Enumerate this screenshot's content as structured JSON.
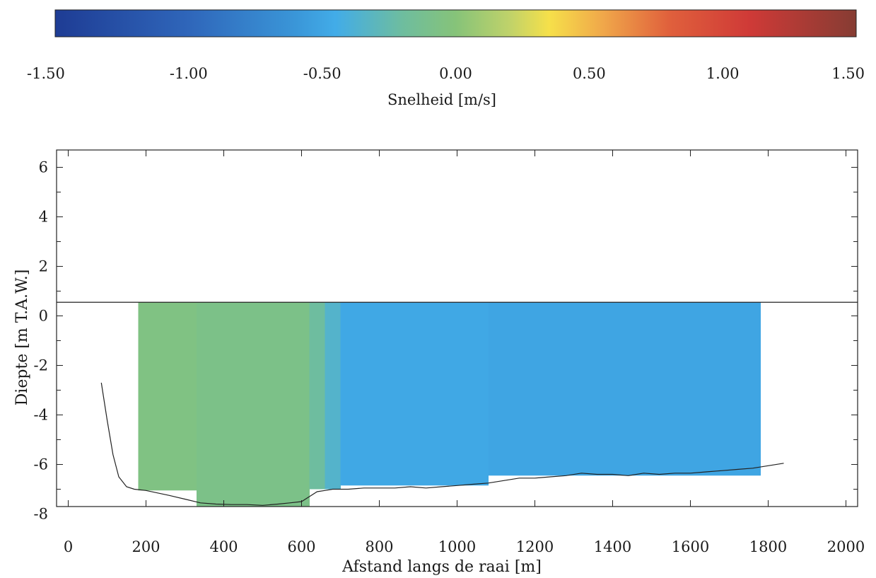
{
  "chart_data": {
    "type": "heatmap",
    "colorbar": {
      "label": "Snelheid [m/s]",
      "range": [
        -1.5,
        1.5
      ],
      "tick_values": [
        -1.5,
        -1.0,
        -0.5,
        0.0,
        0.5,
        1.0,
        1.5
      ],
      "tick_labels": [
        "-1.50",
        "-1.00",
        "-0.50",
        "0.00",
        "0.50",
        "1.00",
        "1.50"
      ],
      "colormap": [
        {
          "v": -1.5,
          "c": "#1e3c94"
        },
        {
          "v": -1.0,
          "c": "#2f66ba"
        },
        {
          "v": -0.6,
          "c": "#3a96d8"
        },
        {
          "v": -0.45,
          "c": "#42ace8"
        },
        {
          "v": -0.2,
          "c": "#6ebd9f"
        },
        {
          "v": 0.0,
          "c": "#86c379"
        },
        {
          "v": 0.2,
          "c": "#bfd26a"
        },
        {
          "v": 0.35,
          "c": "#f6e04a"
        },
        {
          "v": 0.55,
          "c": "#f0a84a"
        },
        {
          "v": 0.8,
          "c": "#e0603c"
        },
        {
          "v": 1.1,
          "c": "#cf3a37"
        },
        {
          "v": 1.5,
          "c": "#863c33"
        }
      ]
    },
    "xlabel": "Afstand langs de raai [m]",
    "ylabel": "Diepte [m T.A.W.]",
    "xlim": [
      -30,
      2030
    ],
    "ylim": [
      -7.7,
      6.7
    ],
    "x_ticks": [
      0,
      200,
      400,
      600,
      800,
      1000,
      1200,
      1400,
      1600,
      1800,
      2000
    ],
    "x_tick_labels": [
      "0",
      "200",
      "400",
      "600",
      "800",
      "1000",
      "1200",
      "1400",
      "1600",
      "1800",
      "2000"
    ],
    "y_ticks": [
      -8,
      -6,
      -4,
      -2,
      0,
      2,
      4,
      6
    ],
    "y_tick_labels": [
      "-8",
      "-6",
      "-4",
      "-2",
      "0",
      "2",
      "4",
      "6"
    ],
    "water_level": 0.55,
    "velocity_regions": [
      {
        "x": [
          180,
          330
        ],
        "y": [
          -7.05,
          0.55
        ],
        "value": -0.05
      },
      {
        "x": [
          330,
          620
        ],
        "y": [
          -7.7,
          0.55
        ],
        "value": -0.08
      },
      {
        "x": [
          620,
          660
        ],
        "y": [
          -7.0,
          0.55
        ],
        "value": -0.2
      },
      {
        "x": [
          660,
          700
        ],
        "y": [
          -7.0,
          0.55
        ],
        "value": -0.35
      },
      {
        "x": [
          700,
          1080
        ],
        "y": [
          -6.85,
          0.55
        ],
        "value": -0.48
      },
      {
        "x": [
          1080,
          1780
        ],
        "y": [
          -6.45,
          0.55
        ],
        "value": -0.5
      }
    ],
    "bottom_profile": {
      "x": [
        85,
        100,
        115,
        130,
        150,
        170,
        200,
        230,
        260,
        300,
        340,
        380,
        420,
        460,
        500,
        540,
        570,
        600,
        620,
        640,
        660,
        680,
        700,
        720,
        760,
        800,
        840,
        880,
        920,
        960,
        1000,
        1040,
        1080,
        1120,
        1160,
        1200,
        1240,
        1280,
        1320,
        1360,
        1400,
        1440,
        1480,
        1520,
        1560,
        1600,
        1640,
        1680,
        1720,
        1760,
        1800,
        1840
      ],
      "y": [
        -2.7,
        -4.2,
        -5.6,
        -6.5,
        -6.9,
        -7.0,
        -7.05,
        -7.15,
        -7.25,
        -7.4,
        -7.55,
        -7.6,
        -7.62,
        -7.62,
        -7.65,
        -7.6,
        -7.55,
        -7.5,
        -7.3,
        -7.1,
        -7.05,
        -7.0,
        -7.0,
        -7.0,
        -6.95,
        -6.95,
        -6.95,
        -6.9,
        -6.95,
        -6.9,
        -6.85,
        -6.8,
        -6.75,
        -6.65,
        -6.55,
        -6.55,
        -6.5,
        -6.45,
        -6.35,
        -6.4,
        -6.4,
        -6.45,
        -6.35,
        -6.4,
        -6.35,
        -6.35,
        -6.3,
        -6.25,
        -6.2,
        -6.15,
        -6.05,
        -5.95
      ]
    }
  }
}
